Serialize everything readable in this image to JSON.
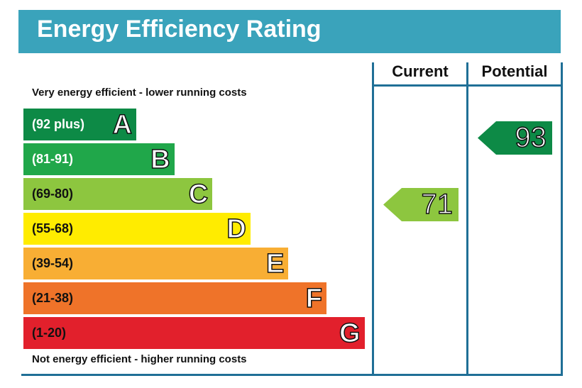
{
  "title": "Energy Efficiency Rating",
  "columns": {
    "current": "Current",
    "potential": "Potential"
  },
  "top_note": "Very energy efficient - lower running costs",
  "bottom_note": "Not energy efficient - higher running costs",
  "chart_data": {
    "type": "bar",
    "title": "Energy Efficiency Rating",
    "bands": [
      {
        "letter": "A",
        "range": "(92 plus)",
        "color": "#0d8a46",
        "text_color": "#ffffff"
      },
      {
        "letter": "B",
        "range": "(81-91)",
        "color": "#20a74a",
        "text_color": "#ffffff"
      },
      {
        "letter": "C",
        "range": "(69-80)",
        "color": "#8dc63f",
        "text_color": "#111111"
      },
      {
        "letter": "D",
        "range": "(55-68)",
        "color": "#ffec00",
        "text_color": "#111111"
      },
      {
        "letter": "E",
        "range": "(39-54)",
        "color": "#f8ae34",
        "text_color": "#111111"
      },
      {
        "letter": "F",
        "range": "(21-38)",
        "color": "#ef7329",
        "text_color": "#111111"
      },
      {
        "letter": "G",
        "range": "(1-20)",
        "color": "#e2202c",
        "text_color": "#111111"
      }
    ],
    "current": {
      "value": "71",
      "band": "C",
      "color": "#8dc63f"
    },
    "potential": {
      "value": "93",
      "band": "A",
      "color": "#0d8a46"
    }
  }
}
